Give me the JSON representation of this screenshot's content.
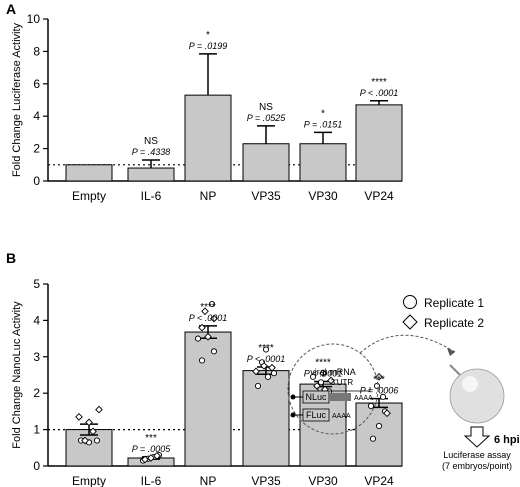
{
  "chart_data": [
    {
      "type": "bar",
      "panel": "A",
      "ylabel": "Fold Change Luciferase Activity",
      "ylim": [
        0,
        10
      ],
      "yticks": [
        0,
        2,
        4,
        6,
        8,
        10
      ],
      "reference_line": 1,
      "categories": [
        "Empty",
        "IL-6",
        "NP",
        "VP35",
        "VP30",
        "VP24"
      ],
      "values": [
        1.0,
        0.8,
        5.3,
        2.3,
        2.3,
        4.7
      ],
      "error_upper": [
        1.0,
        1.3,
        7.85,
        3.4,
        3.0,
        4.95
      ],
      "significance": [
        "",
        "NS",
        "*",
        "NS",
        "*",
        "****"
      ],
      "p_values": [
        "",
        "P = .4338",
        "P = .0199",
        "P = .0525",
        "P = .0151",
        "P < .0001"
      ]
    },
    {
      "type": "bar",
      "panel": "B",
      "ylabel": "Fold Change NanoLuc Activity",
      "ylim": [
        0,
        5
      ],
      "yticks": [
        0,
        1,
        2,
        3,
        4,
        5
      ],
      "reference_line": 1,
      "categories": [
        "Empty",
        "IL-6",
        "NP",
        "VP35",
        "VP30",
        "VP24"
      ],
      "values": [
        1.0,
        0.22,
        3.68,
        2.62,
        2.25,
        1.73
      ],
      "sem": [
        0.15,
        0.03,
        0.17,
        0.1,
        0.07,
        0.12
      ],
      "significance": [
        "",
        "***",
        "****",
        "****",
        "****",
        "***"
      ],
      "p_values": [
        "",
        "P = .0005",
        "P < .0001",
        "P < .0001",
        "P < .0001",
        "P = .0006"
      ],
      "legend": [
        "Replicate 1",
        "Replicate 2"
      ],
      "points": [
        [
          [
            0.7,
            1,
            -8
          ],
          [
            0.65,
            1,
            0
          ],
          [
            0.7,
            1,
            8
          ],
          [
            0.7,
            2,
            -4
          ],
          [
            0.95,
            2,
            4
          ],
          [
            1.2,
            2,
            0
          ],
          [
            1.35,
            2,
            -10
          ],
          [
            1.55,
            2,
            10
          ]
        ],
        [
          [
            0.15,
            1,
            -8
          ],
          [
            0.2,
            1,
            -3
          ],
          [
            0.25,
            1,
            3
          ],
          [
            0.3,
            1,
            8
          ],
          [
            0.18,
            2,
            -6
          ],
          [
            0.22,
            2,
            0
          ],
          [
            0.28,
            2,
            6
          ]
        ],
        [
          [
            2.9,
            1,
            -6
          ],
          [
            3.15,
            1,
            6
          ],
          [
            3.5,
            1,
            -10
          ],
          [
            4.45,
            1,
            4
          ],
          [
            3.8,
            2,
            -6
          ],
          [
            4.05,
            2,
            6
          ],
          [
            3.55,
            2,
            0
          ],
          [
            4.25,
            2,
            -3
          ]
        ],
        [
          [
            2.2,
            1,
            -8
          ],
          [
            2.45,
            1,
            2
          ],
          [
            2.55,
            1,
            8
          ],
          [
            2.85,
            1,
            -4
          ],
          [
            3.2,
            1,
            0
          ],
          [
            2.6,
            2,
            -10
          ],
          [
            2.7,
            2,
            6
          ],
          [
            2.75,
            2,
            -2
          ]
        ],
        [
          [
            1.85,
            1,
            -8
          ],
          [
            2.05,
            1,
            6
          ],
          [
            2.3,
            1,
            -2
          ],
          [
            2.45,
            1,
            -10
          ],
          [
            2.1,
            2,
            2
          ],
          [
            2.2,
            2,
            -6
          ],
          [
            2.35,
            2,
            8
          ],
          [
            2.55,
            2,
            0
          ]
        ],
        [
          [
            0.75,
            1,
            -6
          ],
          [
            1.1,
            1,
            0
          ],
          [
            1.5,
            1,
            6
          ],
          [
            1.65,
            1,
            -8
          ],
          [
            1.9,
            1,
            4
          ],
          [
            2.2,
            1,
            -2
          ],
          [
            2.45,
            2,
            0
          ],
          [
            1.45,
            2,
            8
          ]
        ]
      ]
    }
  ],
  "panel_labels": [
    "A",
    "B"
  ],
  "schematic": {
    "viral_mrna": "viral mRNA",
    "utr": "3'UTR",
    "nluc": "NLuc",
    "fluc": "FLuc",
    "polya1": "AAAA",
    "polya2": "AAAA",
    "time": "6 hpi",
    "assay_line1": "Luciferase assay",
    "assay_line2": "(7 embryos/point)"
  }
}
